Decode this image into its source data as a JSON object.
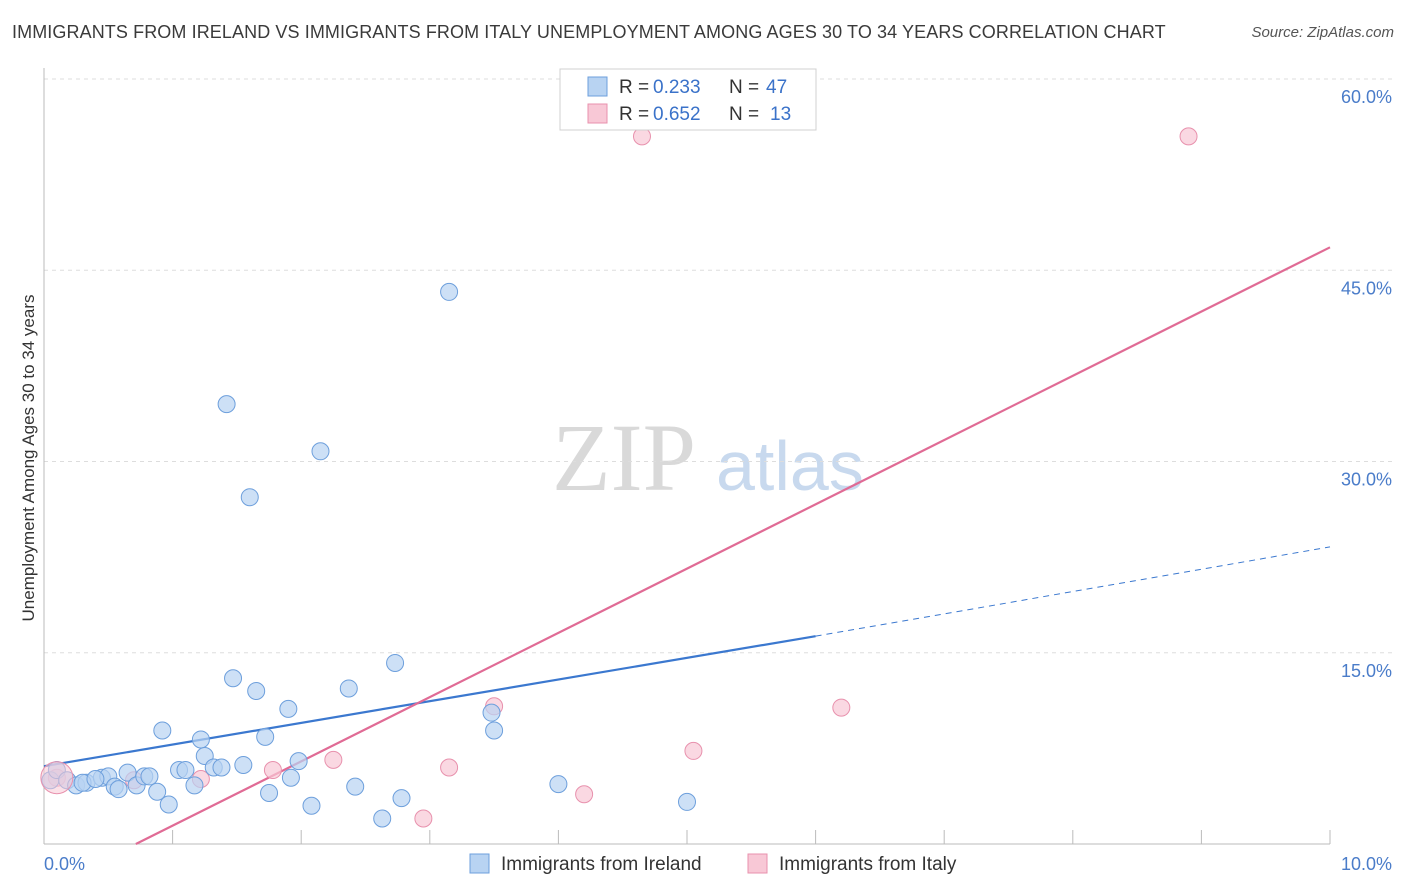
{
  "header": {
    "title": "IMMIGRANTS FROM IRELAND VS IMMIGRANTS FROM ITALY UNEMPLOYMENT AMONG AGES 30 TO 34 YEARS CORRELATION CHART",
    "source": "Source: ZipAtlas.com"
  },
  "watermark": {
    "zip": "ZIP",
    "atlas": "atlas"
  },
  "legend": {
    "ireland": {
      "r_label": "R =",
      "r_value": "0.233",
      "n_label": "N =",
      "n_value": "47"
    },
    "italy": {
      "r_label": "R =",
      "r_value": "0.652",
      "n_label": "N =",
      "n_value": "13"
    }
  },
  "bottom_legend": {
    "ireland": "Immigrants from Ireland",
    "italy": "Immigrants from Italy"
  },
  "colors": {
    "ireland_fill": "#b8d3f2",
    "ireland_stroke": "#6d9fdc",
    "ireland_line": "#3b78cf",
    "italy_fill": "#f8c8d6",
    "italy_stroke": "#e891ad",
    "italy_line": "#e06b95",
    "tick_text": "#4a7cc9",
    "grid": "#dddddd"
  },
  "chart_data": {
    "type": "scatter",
    "title": "IMMIGRANTS FROM IRELAND VS IMMIGRANTS FROM ITALY UNEMPLOYMENT AMONG AGES 30 TO 34 YEARS CORRELATION CHART",
    "xlabel": "",
    "ylabel": "Unemployment Among Ages 30 to 34 years",
    "xlim": [
      0,
      10
    ],
    "ylim": [
      0,
      60
    ],
    "x_ticks": [
      "0.0%",
      "10.0%"
    ],
    "y_ticks": [
      {
        "value": 15,
        "label": "15.0%"
      },
      {
        "value": 30,
        "label": "30.0%"
      },
      {
        "value": 45,
        "label": "45.0%"
      },
      {
        "value": 60,
        "label": "60.0%"
      }
    ],
    "grid": true,
    "series": [
      {
        "name": "Immigrants from Ireland",
        "R": 0.233,
        "N": 47,
        "points": [
          [
            0.05,
            5.0
          ],
          [
            0.1,
            5.8
          ],
          [
            0.18,
            5.0
          ],
          [
            0.25,
            4.6
          ],
          [
            0.33,
            4.8
          ],
          [
            0.45,
            5.2
          ],
          [
            0.5,
            5.3
          ],
          [
            0.55,
            4.5
          ],
          [
            0.58,
            4.3
          ],
          [
            0.65,
            5.6
          ],
          [
            0.72,
            4.6
          ],
          [
            0.78,
            5.3
          ],
          [
            0.82,
            5.3
          ],
          [
            0.88,
            4.1
          ],
          [
            0.92,
            8.9
          ],
          [
            0.97,
            3.1
          ],
          [
            1.05,
            5.8
          ],
          [
            1.1,
            5.8
          ],
          [
            1.17,
            4.6
          ],
          [
            1.22,
            8.2
          ],
          [
            1.25,
            6.9
          ],
          [
            1.32,
            6.0
          ],
          [
            1.38,
            6.0
          ],
          [
            1.42,
            34.5
          ],
          [
            1.47,
            13.0
          ],
          [
            1.55,
            6.2
          ],
          [
            1.6,
            27.2
          ],
          [
            1.65,
            12.0
          ],
          [
            1.72,
            8.4
          ],
          [
            1.75,
            4.0
          ],
          [
            1.9,
            10.6
          ],
          [
            1.92,
            5.2
          ],
          [
            1.98,
            6.5
          ],
          [
            2.08,
            3.0
          ],
          [
            2.15,
            30.8
          ],
          [
            2.37,
            12.2
          ],
          [
            2.42,
            4.5
          ],
          [
            2.63,
            2.0
          ],
          [
            2.73,
            14.2
          ],
          [
            2.78,
            3.6
          ],
          [
            3.15,
            43.3
          ],
          [
            3.48,
            10.3
          ],
          [
            3.5,
            8.9
          ],
          [
            4.0,
            4.7
          ],
          [
            5.0,
            3.3
          ],
          [
            0.3,
            4.8
          ],
          [
            0.4,
            5.1
          ]
        ]
      },
      {
        "name": "Immigrants from Italy",
        "R": 0.652,
        "N": 13,
        "points": [
          [
            0.1,
            5.2
          ],
          [
            0.7,
            5.0
          ],
          [
            1.22,
            5.1
          ],
          [
            1.78,
            5.8
          ],
          [
            2.25,
            6.6
          ],
          [
            2.95,
            2.0
          ],
          [
            3.15,
            6.0
          ],
          [
            3.5,
            10.8
          ],
          [
            4.2,
            3.9
          ],
          [
            4.65,
            55.5
          ],
          [
            5.05,
            7.3
          ],
          [
            6.2,
            10.7
          ],
          [
            8.9,
            55.5
          ]
        ]
      }
    ],
    "trendlines": [
      {
        "series": "Immigrants from Ireland",
        "x": [
          0,
          6
        ],
        "y": [
          6.1,
          16.3
        ],
        "dashed_extension_to_x": 10,
        "dashed_extension_y": 23.3
      },
      {
        "series": "Immigrants from Italy",
        "x": [
          0,
          10
        ],
        "y": [
          -3.6,
          46.8
        ]
      }
    ]
  }
}
